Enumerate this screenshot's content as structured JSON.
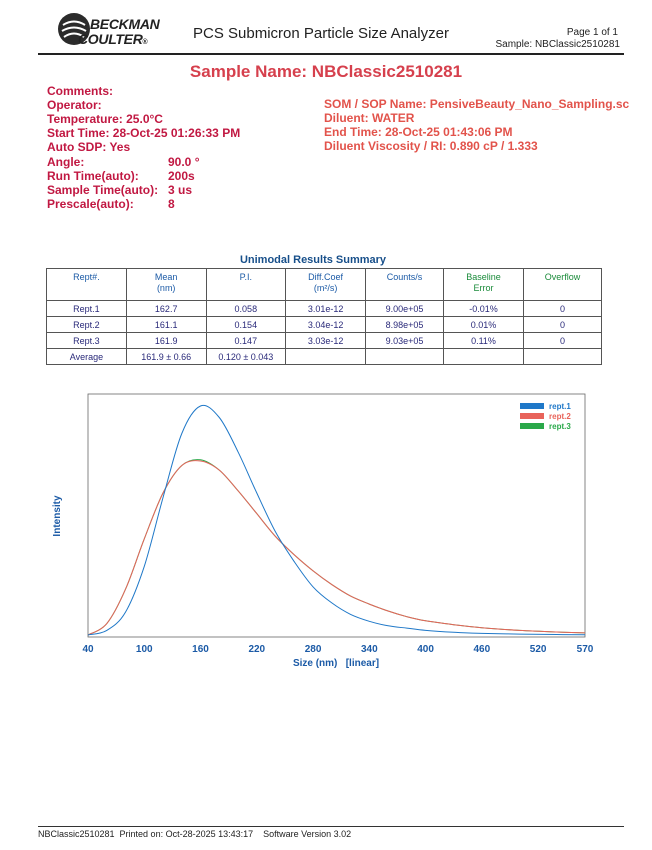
{
  "header": {
    "logo_line1": "BECKMAN",
    "logo_line2": "COULTER",
    "logo_tm": "®",
    "report_title": "PCS Submicron Particle Size Analyzer",
    "page_label": "Page 1 of 1",
    "sample_label": "Sample: NBClassic2510281",
    "sample_name": "Sample Name: NBClassic2510281"
  },
  "info_left": [
    {
      "label": "Comments:",
      "value": ""
    },
    {
      "label": "Operator:",
      "value": ""
    },
    {
      "label": "Temperature: 25.0°C",
      "value": ""
    },
    {
      "label": "Start Time: 28-Oct-25 01:26:33 PM",
      "value": ""
    },
    {
      "label": "Auto SDP: Yes",
      "value": ""
    },
    {
      "label": "Angle:",
      "value": "90.0 °"
    },
    {
      "label": "Run Time(auto):",
      "value": "200s"
    },
    {
      "label": "Sample Time(auto):",
      "value": "3 us"
    },
    {
      "label": "Prescale(auto):",
      "value": "8"
    }
  ],
  "info_right": [
    "SOM / SOP Name: PensiveBeauty_Nano_Sampling.sc",
    "Diluent: WATER",
    "End Time: 28-Oct-25 01:43:06 PM",
    "Diluent Viscosity / RI: 0.890 cP / 1.333"
  ],
  "table": {
    "title": "Unimodal Results Summary",
    "headers": [
      "Rept#.",
      "Mean\n(nm)",
      "P.I.",
      "Diff.Coef\n(m²/s)",
      "Counts/s",
      "Baseline\nError",
      "Overflow"
    ],
    "rows": [
      [
        "Rept.1",
        "162.7",
        "0.058",
        "3.01e-12",
        "9.00e+05",
        "-0.01%",
        "0"
      ],
      [
        "Rept.2",
        "161.1",
        "0.154",
        "3.04e-12",
        "8.98e+05",
        "0.01%",
        "0"
      ],
      [
        "Rept.3",
        "161.9",
        "0.147",
        "3.03e-12",
        "9.03e+05",
        "0.11%",
        "0"
      ]
    ],
    "average": [
      "Average",
      "161.9 ± 0.66",
      "0.120 ± 0.043",
      "",
      "",
      "",
      ""
    ]
  },
  "chart_data": {
    "type": "line",
    "xlabel": "Size (nm)   [linear]",
    "ylabel": "Intensity",
    "xlim": [
      40,
      570
    ],
    "x_ticks": [
      "40",
      "100",
      "160",
      "220",
      "280",
      "340",
      "400",
      "460",
      "520",
      "570"
    ],
    "legend_position": "top-right",
    "grid": false,
    "series": [
      {
        "name": "rept.1",
        "color": "#1f78c8",
        "x": [
          40,
          60,
          80,
          100,
          120,
          140,
          160,
          180,
          200,
          220,
          240,
          260,
          280,
          300,
          320,
          340,
          360,
          380,
          400,
          430,
          460,
          500,
          540,
          570
        ],
        "y": [
          0.0,
          0.02,
          0.1,
          0.3,
          0.6,
          0.88,
          1.0,
          0.95,
          0.8,
          0.62,
          0.45,
          0.32,
          0.21,
          0.14,
          0.09,
          0.06,
          0.04,
          0.03,
          0.02,
          0.012,
          0.007,
          0.004,
          0.002,
          0.001
        ]
      },
      {
        "name": "rept.2",
        "color": "#e8635a",
        "x": [
          40,
          60,
          80,
          100,
          120,
          140,
          160,
          180,
          200,
          220,
          240,
          260,
          280,
          300,
          320,
          340,
          360,
          380,
          400,
          430,
          460,
          500,
          540,
          570
        ],
        "y": [
          0.0,
          0.05,
          0.2,
          0.42,
          0.62,
          0.74,
          0.76,
          0.72,
          0.63,
          0.53,
          0.43,
          0.35,
          0.28,
          0.22,
          0.17,
          0.135,
          0.105,
          0.08,
          0.062,
          0.045,
          0.032,
          0.02,
          0.013,
          0.009
        ]
      },
      {
        "name": "rept.3",
        "color": "#2aa84a",
        "x": [
          40,
          60,
          80,
          100,
          120,
          140,
          160,
          180,
          200,
          220,
          240,
          260,
          280,
          300,
          320,
          340,
          360,
          380,
          400,
          430,
          460,
          500,
          540,
          570
        ],
        "y": [
          0.0,
          0.05,
          0.2,
          0.42,
          0.62,
          0.74,
          0.765,
          0.72,
          0.63,
          0.53,
          0.43,
          0.35,
          0.28,
          0.22,
          0.17,
          0.135,
          0.105,
          0.08,
          0.062,
          0.045,
          0.032,
          0.02,
          0.013,
          0.009
        ]
      }
    ]
  },
  "footer": {
    "text": "NBClassic2510281  Printed on: Oct-28-2025 13:43:17    Software Version 3.02"
  }
}
